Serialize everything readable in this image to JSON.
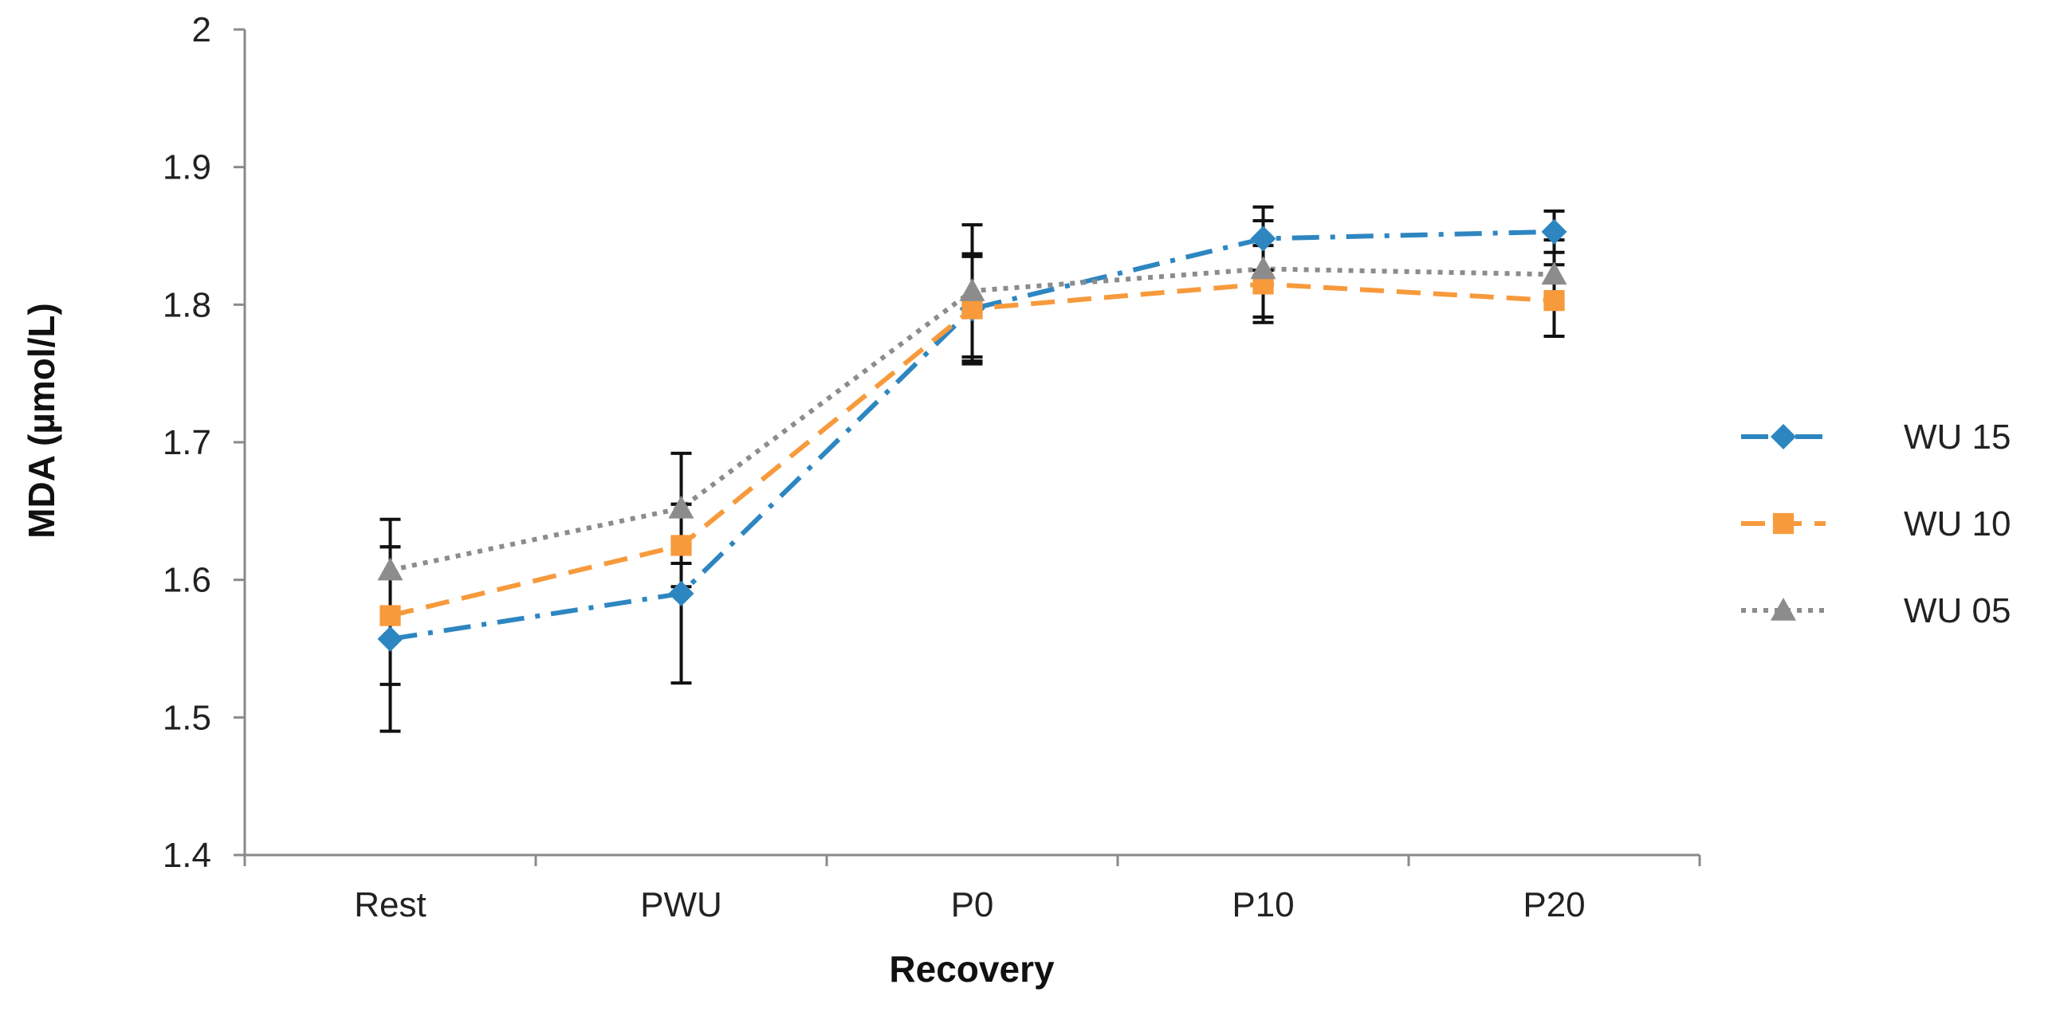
{
  "chart_data": {
    "type": "line",
    "title": "",
    "xlabel": "Recovery",
    "ylabel": "MDA (µmol/L)",
    "ylim": [
      1.4,
      2.0
    ],
    "yticks": [
      "1.4",
      "1.5",
      "1.6",
      "1.7",
      "1.8",
      "1.9",
      "2"
    ],
    "grid": false,
    "legend_position": "right",
    "categories": [
      "Rest",
      "PWU",
      "P0",
      "P10",
      "P20"
    ],
    "series": [
      {
        "name": "WU 15",
        "color": "#2E86C1",
        "marker": "diamond",
        "line_style": "dash-dot",
        "values": [
          1.557,
          1.59,
          1.797,
          1.848,
          1.853
        ],
        "error": [
          0.067,
          0.065,
          0.04,
          0.023,
          0.015
        ]
      },
      {
        "name": "WU 10",
        "color": "#F79A3C",
        "marker": "square",
        "line_style": "dashed",
        "values": [
          1.574,
          1.625,
          1.797,
          1.815,
          1.803
        ],
        "error": [
          0.05,
          0.03,
          0.038,
          0.028,
          0.026
        ]
      },
      {
        "name": "WU 05",
        "color": "#8C8C8C",
        "marker": "triangle",
        "line_style": "dotted",
        "values": [
          1.607,
          1.652,
          1.81,
          1.826,
          1.822
        ],
        "error": [
          0.037,
          0.04,
          0.048,
          0.035,
          0.025
        ]
      }
    ]
  }
}
